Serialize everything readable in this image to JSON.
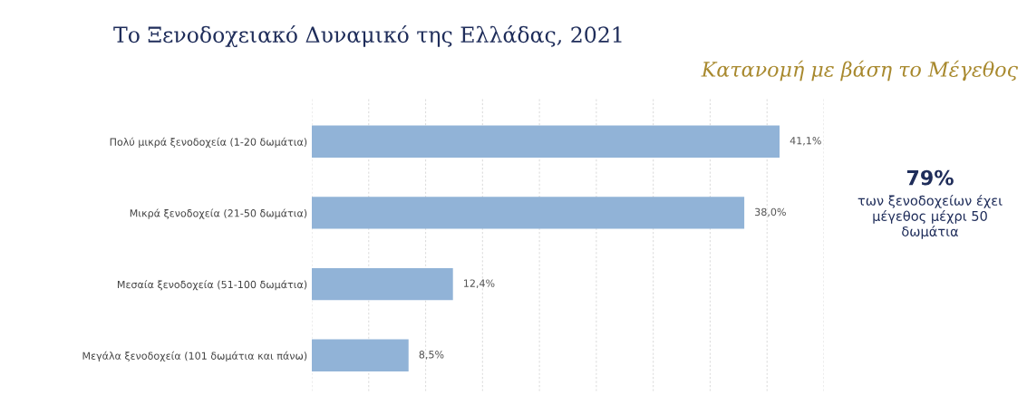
{
  "chart_data": {
    "type": "bar",
    "orientation": "horizontal",
    "title": "Το Ξενοδοχειακό Δυναμικό της Ελλάδας, 2021",
    "subtitle": "Κατανομή με βάση το Μέγεθος",
    "categories": [
      "Πολύ μικρά ξενοδοχεία (1-20 δωμάτια)",
      "Μικρά ξενοδοχεία (21-50 δωμάτια)",
      "Μεσαία ξενοδοχεία (51-100 δωμάτια)",
      "Μεγάλα ξενοδοχεία (101 δωμάτια και πάνω)"
    ],
    "values": [
      41.1,
      38.0,
      12.4,
      8.5
    ],
    "value_labels": [
      "41,1%",
      "38,0%",
      "12,4%",
      "8,5%"
    ],
    "color": "#91b3d7",
    "xlim": [
      0,
      45
    ],
    "xticks": [
      {
        "value": 0,
        "label": null
      },
      {
        "value": 5,
        "label": null
      },
      {
        "value": 10,
        "label": null
      },
      {
        "value": 15,
        "label": null
      },
      {
        "value": 20,
        "label": null
      },
      {
        "value": 25,
        "label": null
      },
      {
        "value": 30,
        "label": null
      },
      {
        "value": 35,
        "label": null
      },
      {
        "value": 40,
        "label": null
      },
      {
        "value": 45,
        "label": null
      }
    ],
    "grid": "x",
    "annotations": [
      "79%",
      "των ξενοδοχείων έχει\nμέγεθος μέχρι 50\nδωμάτια"
    ]
  }
}
